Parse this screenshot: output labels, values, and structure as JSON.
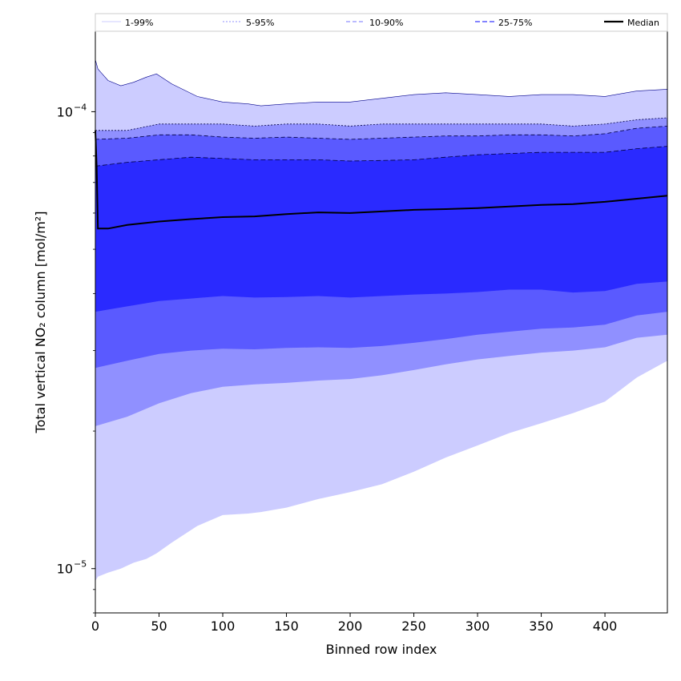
{
  "chart_data": {
    "type": "area",
    "xlabel": "Binned row index",
    "ylabel": "Total vertical NO₂ column [mol/m²]",
    "xlim": [
      0,
      449
    ],
    "ylim": [
      8e-06,
      0.00015
    ],
    "yscale": "log",
    "x_ticks": [
      0,
      50,
      100,
      150,
      200,
      250,
      300,
      350,
      400
    ],
    "y_ticks": [
      {
        "value": 1e-05,
        "base": "10",
        "exp": "−5"
      },
      {
        "value": 0.0001,
        "base": "10",
        "exp": "−4"
      }
    ],
    "grid": false,
    "legend_position": "top",
    "legend": [
      "1-99%",
      "5-95%",
      "10-90%",
      "25-75%",
      "Median"
    ],
    "bands": [
      {
        "name": "1-99%",
        "color": "#ccccff",
        "x": [
          0,
          2,
          10,
          20,
          30,
          40,
          48,
          60,
          80,
          100,
          120,
          130,
          150,
          175,
          200,
          225,
          250,
          275,
          300,
          325,
          350,
          375,
          400,
          425,
          449
        ],
        "upper": [
          0.00013,
          0.000124,
          0.000117,
          0.000114,
          0.000116,
          0.000119,
          0.000121,
          0.000115,
          0.000108,
          0.000105,
          0.000104,
          0.000103,
          0.000104,
          0.000105,
          0.000105,
          0.000107,
          0.000109,
          0.00011,
          0.000109,
          0.000108,
          0.000109,
          0.000109,
          0.000108,
          0.000111,
          0.000112
        ],
        "lower": [
          9.4e-06,
          9.6e-06,
          9.8e-06,
          1e-05,
          1.03e-05,
          1.05e-05,
          1.08e-05,
          1.14e-05,
          1.24e-05,
          1.31e-05,
          1.32e-05,
          1.33e-05,
          1.36e-05,
          1.42e-05,
          1.47e-05,
          1.53e-05,
          1.63e-05,
          1.75e-05,
          1.86e-05,
          1.98e-05,
          2.08e-05,
          2.19e-05,
          2.32e-05,
          2.62e-05,
          2.85e-05
        ]
      },
      {
        "name": "5-95%",
        "color": "#9090ff",
        "x": [
          0,
          25,
          50,
          75,
          100,
          125,
          150,
          175,
          200,
          225,
          250,
          275,
          300,
          325,
          350,
          375,
          400,
          425,
          449
        ],
        "upper": [
          9.1e-05,
          9.1e-05,
          9.4e-05,
          9.4e-05,
          9.4e-05,
          9.3e-05,
          9.4e-05,
          9.4e-05,
          9.3e-05,
          9.4e-05,
          9.4e-05,
          9.4e-05,
          9.4e-05,
          9.4e-05,
          9.4e-05,
          9.3e-05,
          9.4e-05,
          9.6e-05,
          9.7e-05
        ],
        "lower": [
          2.05e-05,
          2.15e-05,
          2.3e-05,
          2.42e-05,
          2.5e-05,
          2.53e-05,
          2.55e-05,
          2.58e-05,
          2.6e-05,
          2.65e-05,
          2.72e-05,
          2.8e-05,
          2.87e-05,
          2.92e-05,
          2.97e-05,
          3e-05,
          3.05e-05,
          3.2e-05,
          3.25e-05
        ]
      },
      {
        "name": "10-90%",
        "color": "#5a5aff",
        "x": [
          0,
          25,
          50,
          75,
          100,
          125,
          150,
          175,
          200,
          225,
          250,
          275,
          300,
          325,
          350,
          375,
          400,
          425,
          449
        ],
        "upper": [
          8.7e-05,
          8.75e-05,
          8.9e-05,
          8.9e-05,
          8.8e-05,
          8.75e-05,
          8.8e-05,
          8.75e-05,
          8.7e-05,
          8.75e-05,
          8.8e-05,
          8.85e-05,
          8.85e-05,
          8.9e-05,
          8.9e-05,
          8.85e-05,
          8.95e-05,
          9.2e-05,
          9.3e-05
        ],
        "lower": [
          2.75e-05,
          2.85e-05,
          2.95e-05,
          3e-05,
          3.03e-05,
          3.02e-05,
          3.04e-05,
          3.05e-05,
          3.04e-05,
          3.07e-05,
          3.12e-05,
          3.18e-05,
          3.25e-05,
          3.3e-05,
          3.35e-05,
          3.37e-05,
          3.42e-05,
          3.58e-05,
          3.65e-05
        ]
      },
      {
        "name": "25-75%",
        "color": "#2a2aff",
        "x": [
          0,
          25,
          50,
          75,
          100,
          125,
          150,
          175,
          200,
          225,
          250,
          275,
          300,
          325,
          350,
          375,
          400,
          425,
          449
        ],
        "upper": [
          7.6e-05,
          7.75e-05,
          7.85e-05,
          7.95e-05,
          7.9e-05,
          7.85e-05,
          7.85e-05,
          7.85e-05,
          7.8e-05,
          7.82e-05,
          7.85e-05,
          7.95e-05,
          8.05e-05,
          8.1e-05,
          8.15e-05,
          8.15e-05,
          8.15e-05,
          8.3e-05,
          8.4e-05
        ],
        "lower": [
          3.65e-05,
          3.75e-05,
          3.85e-05,
          3.9e-05,
          3.95e-05,
          3.92e-05,
          3.93e-05,
          3.95e-05,
          3.92e-05,
          3.95e-05,
          3.98e-05,
          4e-05,
          4.03e-05,
          4.08e-05,
          4.08e-05,
          4.02e-05,
          4.05e-05,
          4.2e-05,
          4.25e-05
        ]
      }
    ],
    "median": {
      "name": "Median",
      "color": "#000000",
      "x": [
        0,
        1,
        2,
        10,
        25,
        50,
        75,
        100,
        125,
        150,
        175,
        200,
        225,
        250,
        275,
        300,
        325,
        350,
        375,
        400,
        425,
        449
      ],
      "y": [
        9.1e-05,
        7.6e-05,
        5.55e-05,
        5.55e-05,
        5.65e-05,
        5.75e-05,
        5.82e-05,
        5.88e-05,
        5.9e-05,
        5.97e-05,
        6.02e-05,
        6e-05,
        6.05e-05,
        6.1e-05,
        6.12e-05,
        6.15e-05,
        6.2e-05,
        6.25e-05,
        6.28e-05,
        6.35e-05,
        6.45e-05,
        6.55e-05
      ]
    }
  }
}
